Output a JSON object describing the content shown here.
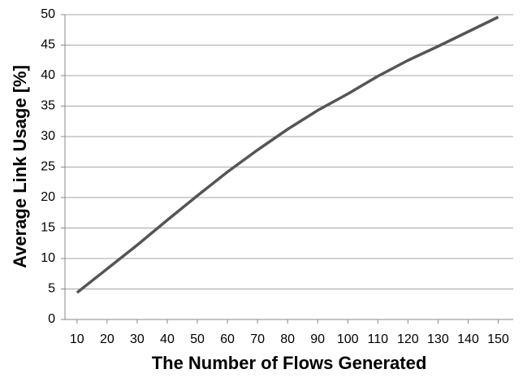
{
  "chart_data": {
    "type": "line",
    "x_label": "The Number of Flows Generated",
    "y_label": "Average Link Usage [%]",
    "x": [
      10,
      20,
      30,
      40,
      50,
      60,
      70,
      80,
      90,
      100,
      110,
      120,
      130,
      140,
      150
    ],
    "series": [
      {
        "name": "Average Link Usage",
        "color": "#555555",
        "values": [
          4.4,
          8.3,
          12.2,
          16.3,
          20.3,
          24.2,
          27.8,
          31.2,
          34.3,
          37,
          39.9,
          42.5,
          44.8,
          47.2,
          49.6
        ]
      }
    ],
    "xlim": [
      6,
      155
    ],
    "xticks": [
      10,
      20,
      30,
      40,
      50,
      60,
      70,
      80,
      90,
      100,
      110,
      120,
      130,
      140,
      150
    ],
    "ylim": [
      0,
      50
    ],
    "yticks": [
      0,
      5,
      10,
      15,
      20,
      25,
      30,
      35,
      40,
      45,
      50
    ],
    "grid": true
  }
}
